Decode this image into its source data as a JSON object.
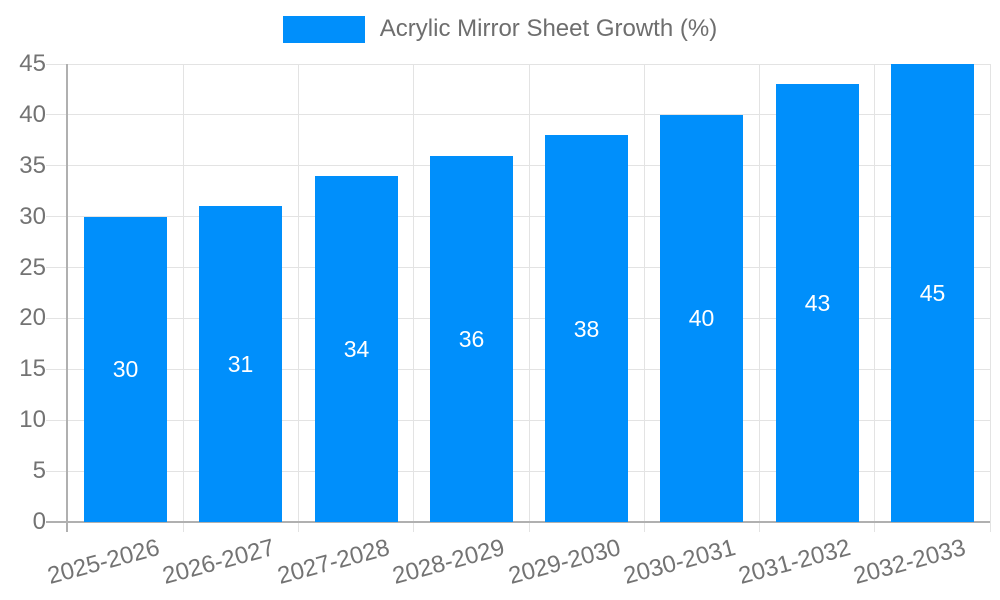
{
  "legend": {
    "label": "Acrylic Mirror Sheet Growth (%)"
  },
  "colors": {
    "bar": "#008ffb",
    "bar_value_label": "#ffffff",
    "axis_label_text": "#737373",
    "legend_text": "#6e6e6e",
    "gridline": "#e3e3e3",
    "axis_line": "#b0b0b0",
    "background": "#ffffff"
  },
  "chart_data": {
    "type": "bar",
    "title": "",
    "categories": [
      "2025-2026",
      "2026-2027",
      "2027-2028",
      "2028-2029",
      "2029-2030",
      "2030-2031",
      "2031-2032",
      "2032-2033"
    ],
    "values": [
      30,
      31,
      34,
      36,
      38,
      40,
      43,
      45
    ],
    "bar_value_labels": [
      "30",
      "31",
      "34",
      "36",
      "38",
      "40",
      "43",
      "45"
    ],
    "series_name": "Acrylic Mirror Sheet Growth (%)",
    "xlabel": "",
    "ylabel": "",
    "ylim": [
      0,
      45
    ],
    "yticks": [
      0,
      5,
      10,
      15,
      20,
      25,
      30,
      35,
      40,
      45
    ],
    "grid": "horizontal and vertical light gray gridlines",
    "legend_position": "top-center",
    "xtick_label_rotation_deg": -15,
    "value_labels_inside_bars": true
  }
}
